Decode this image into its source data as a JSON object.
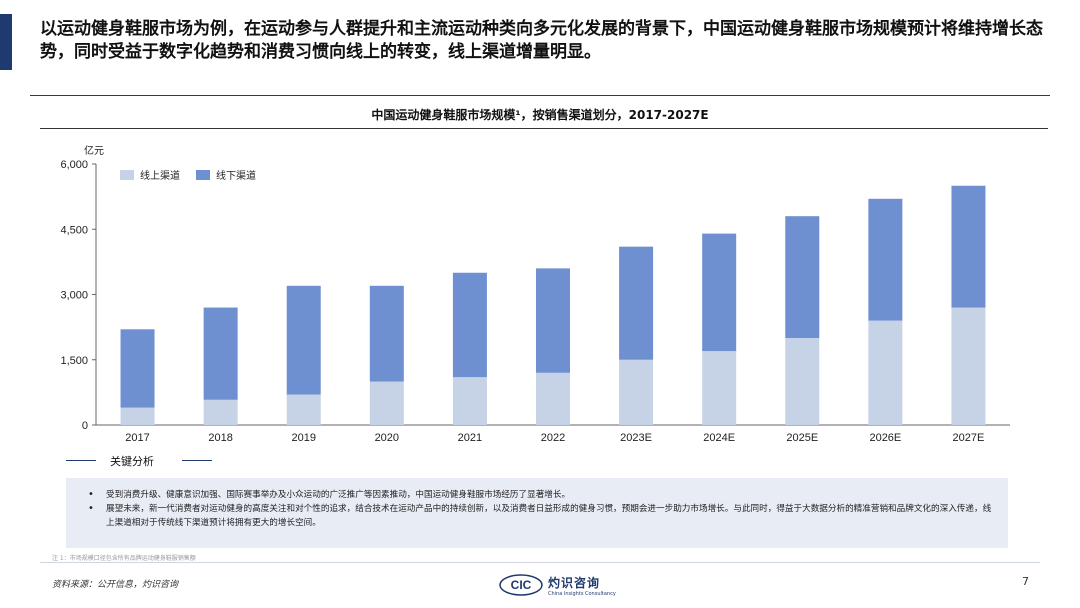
{
  "headline": "以运动健身鞋服市场为例，在运动参与人群提升和主流运动种类向多元化发展的背景下，中国运动健身鞋服市场规模预计将维持增长态势，同时受益于数字化趋势和消费习惯向线上的转变，线上渠道增量明显。",
  "chart_title": "中国运动健身鞋服市场规模¹，按销售渠道划分，2017-2027E",
  "chart_data": {
    "type": "bar",
    "stacked": true,
    "unit_label": "亿元",
    "categories": [
      "2017",
      "2018",
      "2019",
      "2020",
      "2021",
      "2022",
      "2023E",
      "2024E",
      "2025E",
      "2026E",
      "2027E"
    ],
    "series": [
      {
        "name": "线上渠道",
        "color": "#c6d2e6",
        "values": [
          400,
          580,
          700,
          1000,
          1100,
          1200,
          1500,
          1700,
          2000,
          2400,
          2700
        ]
      },
      {
        "name": "线下渠道",
        "color": "#6e8fd0",
        "values": [
          1800,
          2120,
          2500,
          2200,
          2400,
          2400,
          2600,
          2700,
          2800,
          2800,
          2800
        ]
      }
    ],
    "ylim": [
      0,
      6000
    ],
    "yticks": [
      0,
      1500,
      3000,
      4500,
      6000
    ],
    "ytick_labels": [
      "0",
      "1,500",
      "3,000",
      "4,500",
      "6,000"
    ],
    "legend_position": "top-left",
    "grid": false
  },
  "key_analysis": {
    "label": "关键分析",
    "bullets": [
      "受到消费升级、健康意识加强、国际赛事举办及小众运动的广泛推广等因素推动，中国运动健身鞋服市场经历了显著增长。",
      "展望未来，新一代消费者对运动健身的高度关注和对个性的追求，结合技术在运动产品中的持续创新，以及消费者日益形成的健身习惯，预期会进一步助力市场增长。与此同时，得益于大数据分析的精准营销和品牌文化的深入传递，线上渠道相对于传统线下渠道预计将拥有更大的增长空间。"
    ]
  },
  "footnote": "注 1：市场规模口径包含所有品牌运动健身鞋服销售额",
  "source": "资料来源：公开信息，灼识咨询",
  "logo": {
    "mark_text": "CIC",
    "cn": "灼识咨询",
    "en": "China Insights Consultancy"
  },
  "page_number": "7",
  "colors": {
    "brand": "#1f3a6e",
    "online": "#c6d2e6",
    "offline": "#6e8fd0",
    "box_bg": "#e8edf5"
  }
}
